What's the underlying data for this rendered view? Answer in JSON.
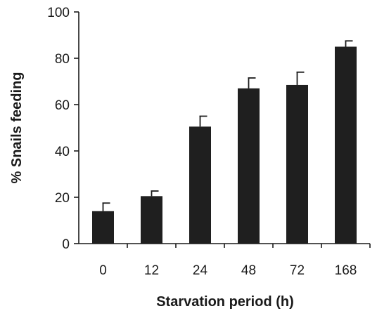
{
  "chart_data": {
    "type": "bar",
    "title": "",
    "xlabel": "Starvation period (h)",
    "ylabel": "% Snails feeding",
    "categories": [
      "0",
      "12",
      "24",
      "48",
      "72",
      "168"
    ],
    "values": [
      14,
      20.5,
      50.5,
      67,
      68.5,
      85
    ],
    "errors": [
      3.5,
      2.2,
      4.5,
      4.5,
      5.5,
      2.5
    ],
    "ylim": [
      0,
      100
    ],
    "yticks": [
      0,
      20,
      40,
      60,
      80,
      100
    ],
    "bar_color": "#1f1f1f",
    "grid": false,
    "legend": "none"
  }
}
